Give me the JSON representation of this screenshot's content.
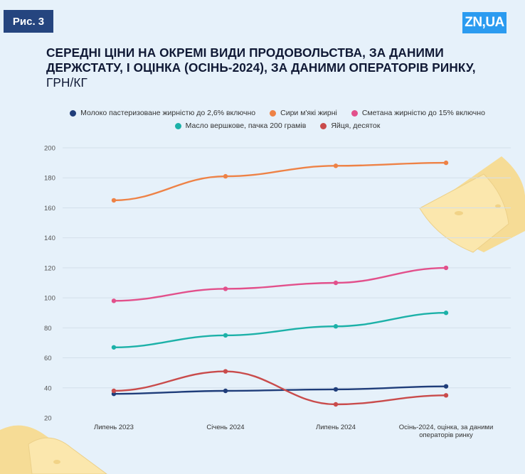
{
  "figure_label": "Рис. 3",
  "logo": "ZN,UA",
  "title": {
    "main": "СЕРЕДНІ ЦІНИ НА ОКРЕМІ ВИДИ ПРОДОВОЛЬСТВА, ЗА ДАНИМИ ДЕРЖСТАТУ, І ОЦІНКА (ОСІНЬ-2024), ЗА ДАНИМИ ОПЕРАТОРІВ РИНКУ,",
    "unit": " ГРН/КГ"
  },
  "colors": {
    "background": "#e6f1fa",
    "badge": "#25457f",
    "logo": "#2b9bf0",
    "grid": "#d3dfea"
  },
  "chart_data": {
    "type": "line",
    "categories": [
      "Липень 2023",
      "Січень 2024",
      "Липень 2024",
      "Осінь-2024, оцінка, за даними операторів ринку"
    ],
    "category_lines": [
      [
        "Липень 2023"
      ],
      [
        "Січень 2024"
      ],
      [
        "Липень 2024"
      ],
      [
        "Осінь-2024, оцінка, за даними",
        "операторів ринку"
      ]
    ],
    "ylim": [
      20,
      200
    ],
    "yticks": [
      20,
      40,
      60,
      80,
      100,
      120,
      140,
      160,
      180,
      200
    ],
    "grid": true,
    "legend_position": "top",
    "series": [
      {
        "name": "Молоко пастеризоване жирністю до 2,6% включно",
        "color": "#1f3d7a",
        "values": [
          36,
          38,
          39,
          41
        ]
      },
      {
        "name": "Сири м'які жирні",
        "color": "#ee8246",
        "values": [
          165,
          181,
          188,
          190
        ]
      },
      {
        "name": "Сметана жирністю до 15% включно",
        "color": "#e2508b",
        "values": [
          98,
          106,
          110,
          120
        ]
      },
      {
        "name": "Масло вершкове, пачка 200 грамів",
        "color": "#1cb1a8",
        "values": [
          67,
          75,
          81,
          90
        ]
      },
      {
        "name": "Яйця, десяток",
        "color": "#c94b4b",
        "values": [
          38,
          51,
          29,
          35
        ]
      }
    ]
  }
}
